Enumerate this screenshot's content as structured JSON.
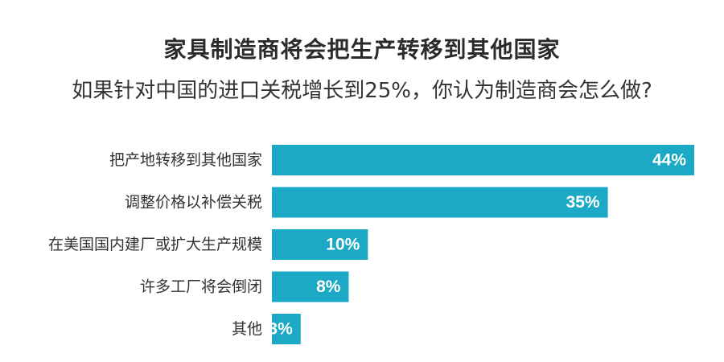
{
  "chart_data": {
    "type": "bar",
    "orientation": "horizontal",
    "title": "家具制造商将会把生产转移到其他国家",
    "subtitle": "如果针对中国的进口关税增长到25%，你认为制造商会怎么做?",
    "categories": [
      "把产地转移到其他国家",
      "调整价格以补偿关税",
      "在美国国内建厂或扩大生产规模",
      "许多工厂将会倒闭",
      "其他"
    ],
    "values": [
      44,
      35,
      10,
      8,
      3
    ],
    "value_labels": [
      "44%",
      "35%",
      "10%",
      "8%",
      "3%"
    ],
    "unit": "%",
    "xlim": [
      0,
      44
    ],
    "grid": false,
    "legend": "none"
  },
  "colors": {
    "bar": "#1ba9c6",
    "bar_label": "#ffffff",
    "category_label": "#333333"
  }
}
